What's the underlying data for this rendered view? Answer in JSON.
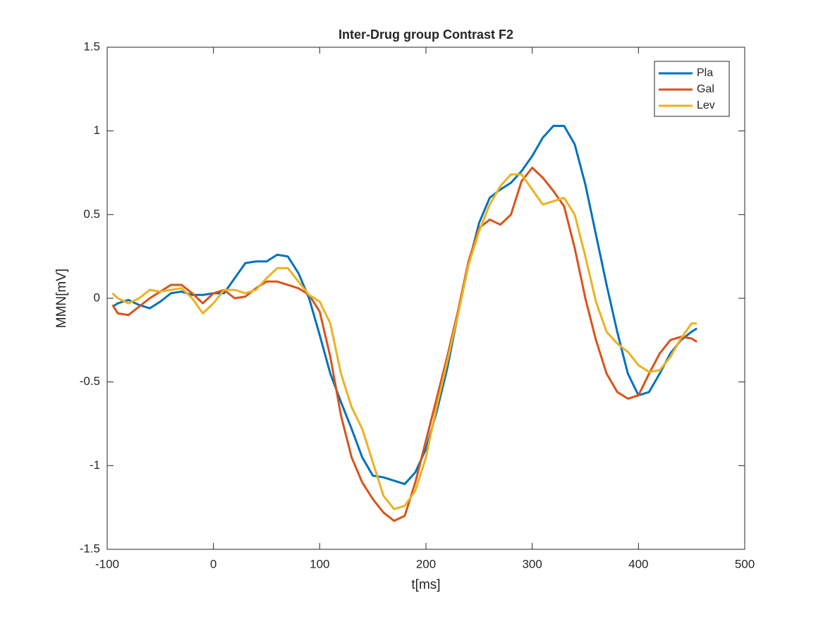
{
  "chart_data": {
    "type": "line",
    "title": "Inter-Drug group Contrast F2",
    "xlabel": "t[ms]",
    "ylabel": "MMN[mV]",
    "x": [
      -95,
      -90,
      -80,
      -70,
      -60,
      -50,
      -40,
      -30,
      -20,
      -10,
      0,
      10,
      20,
      30,
      40,
      50,
      60,
      70,
      80,
      90,
      100,
      110,
      120,
      130,
      140,
      150,
      160,
      170,
      180,
      190,
      200,
      210,
      220,
      230,
      240,
      250,
      260,
      270,
      280,
      290,
      300,
      310,
      320,
      330,
      340,
      350,
      360,
      370,
      380,
      390,
      400,
      410,
      420,
      430,
      440,
      450,
      455
    ],
    "series": [
      {
        "name": "Pla",
        "color": "#0072bd",
        "values": [
          -0.05,
          -0.03,
          -0.01,
          -0.04,
          -0.06,
          -0.02,
          0.03,
          0.04,
          0.02,
          0.02,
          0.03,
          0.03,
          0.12,
          0.21,
          0.22,
          0.22,
          0.26,
          0.25,
          0.15,
          0.0,
          -0.22,
          -0.45,
          -0.62,
          -0.78,
          -0.95,
          -1.06,
          -1.07,
          -1.09,
          -1.11,
          -1.04,
          -0.9,
          -0.68,
          -0.42,
          -0.1,
          0.2,
          0.45,
          0.6,
          0.65,
          0.69,
          0.76,
          0.85,
          0.96,
          1.03,
          1.03,
          0.92,
          0.68,
          0.38,
          0.08,
          -0.2,
          -0.45,
          -0.58,
          -0.56,
          -0.45,
          -0.33,
          -0.25,
          -0.2,
          -0.18
        ]
      },
      {
        "name": "Gal",
        "color": "#d95319",
        "values": [
          -0.04,
          -0.09,
          -0.1,
          -0.05,
          0.0,
          0.04,
          0.08,
          0.08,
          0.03,
          -0.03,
          0.03,
          0.05,
          0.0,
          0.01,
          0.06,
          0.1,
          0.1,
          0.08,
          0.06,
          0.02,
          -0.08,
          -0.35,
          -0.7,
          -0.95,
          -1.1,
          -1.2,
          -1.28,
          -1.33,
          -1.3,
          -1.1,
          -0.85,
          -0.6,
          -0.35,
          -0.08,
          0.22,
          0.42,
          0.47,
          0.44,
          0.5,
          0.7,
          0.78,
          0.72,
          0.64,
          0.55,
          0.3,
          0.0,
          -0.25,
          -0.45,
          -0.56,
          -0.6,
          -0.58,
          -0.45,
          -0.33,
          -0.25,
          -0.23,
          -0.24,
          -0.26
        ]
      },
      {
        "name": "Lev",
        "color": "#edb120",
        "values": [
          0.03,
          0.0,
          -0.03,
          0.0,
          0.05,
          0.04,
          0.05,
          0.06,
          0.0,
          -0.09,
          -0.03,
          0.05,
          0.05,
          0.03,
          0.05,
          0.12,
          0.18,
          0.18,
          0.1,
          0.02,
          -0.02,
          -0.15,
          -0.45,
          -0.65,
          -0.78,
          -0.98,
          -1.18,
          -1.26,
          -1.24,
          -1.15,
          -0.95,
          -0.65,
          -0.38,
          -0.1,
          0.2,
          0.4,
          0.56,
          0.67,
          0.74,
          0.74,
          0.65,
          0.56,
          0.58,
          0.6,
          0.5,
          0.25,
          -0.02,
          -0.2,
          -0.27,
          -0.32,
          -0.4,
          -0.44,
          -0.43,
          -0.35,
          -0.24,
          -0.15,
          -0.15
        ]
      }
    ],
    "xlim": [
      -100,
      500
    ],
    "xticks": [
      -100,
      0,
      100,
      200,
      300,
      400,
      500
    ],
    "ylim": [
      -1.5,
      1.5
    ],
    "yticks": [
      -1.5,
      -1,
      -0.5,
      0,
      0.5,
      1,
      1.5
    ],
    "legend": "northeast"
  }
}
